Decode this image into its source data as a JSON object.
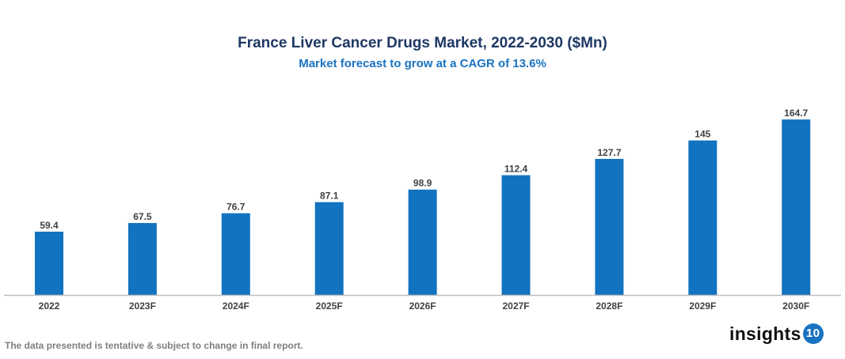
{
  "chart_data": {
    "type": "bar",
    "title": "France Liver Cancer Drugs Market, 2022-2030 ($Mn)",
    "subtitle": "Market forecast to grow at a CAGR of 13.6%",
    "categories": [
      "2022",
      "2023F",
      "2024F",
      "2025F",
      "2026F",
      "2027F",
      "2028F",
      "2029F",
      "2030F"
    ],
    "values": [
      59.4,
      67.5,
      76.7,
      87.1,
      98.9,
      112.4,
      127.7,
      145,
      164.7
    ],
    "data_labels": [
      "59.4",
      "67.5",
      "76.7",
      "87.1",
      "98.9",
      "112.4",
      "127.7",
      "145",
      "164.7"
    ],
    "xlabel": "",
    "ylabel": "",
    "ylim": [
      0,
      190
    ],
    "grid": false,
    "bar_color": "#1273c0"
  },
  "footer": {
    "note": "The data presented is tentative & subject to change in final report."
  },
  "logo": {
    "text": "insights",
    "badge": "10"
  }
}
